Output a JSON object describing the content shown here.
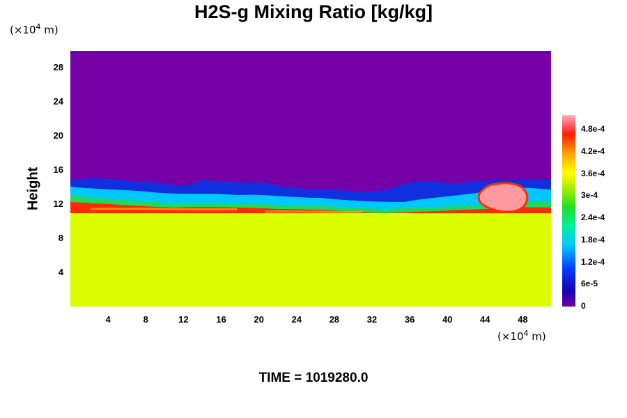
{
  "chart_data": {
    "type": "heatmap",
    "title": "H2S-g Mixing Ratio [kg/kg]",
    "ylabel": "Height",
    "y_unit": {
      "prefix": "(×10",
      "exp": "4",
      "suffix": " m)"
    },
    "x_unit": {
      "prefix": "(×10",
      "exp": "4",
      "suffix": " m)"
    },
    "xlim": [
      0,
      51
    ],
    "ylim": [
      0,
      30
    ],
    "x_ticks": [
      "4",
      "8",
      "12",
      "16",
      "20",
      "24",
      "28",
      "32",
      "36",
      "40",
      "44",
      "48"
    ],
    "y_ticks": [
      "4",
      "8",
      "12",
      "16",
      "20",
      "24",
      "28"
    ],
    "colorbar": {
      "range": [
        0,
        0.00052
      ],
      "labels": [
        "0",
        "6e-5",
        "1.2e-4",
        "1.8e-4",
        "2.4e-4",
        "3e-4",
        "3.6e-4",
        "4.2e-4",
        "4.8e-4"
      ]
    },
    "field_summary": {
      "lower_layer_value": 0.00033,
      "upper_layer_value": 0,
      "interface_height": 12.5,
      "peak_value": 0.00052,
      "peak_location_x": 46
    },
    "time_label": "TIME = 1019280.0"
  },
  "colors": {
    "upper": "#7500a8",
    "lower": "#dcff00",
    "plume_red": "#ff2a00",
    "plume_pink": "#ff9aa0"
  }
}
